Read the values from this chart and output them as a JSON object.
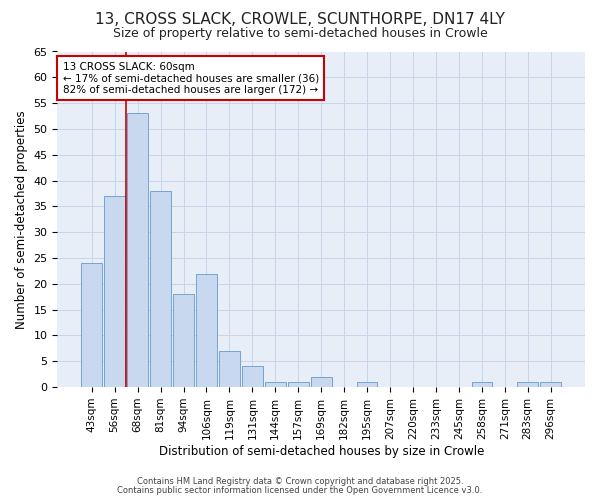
{
  "title1": "13, CROSS SLACK, CROWLE, SCUNTHORPE, DN17 4LY",
  "title2": "Size of property relative to semi-detached houses in Crowle",
  "xlabel": "Distribution of semi-detached houses by size in Crowle",
  "ylabel": "Number of semi-detached properties",
  "categories": [
    "43sqm",
    "56sqm",
    "68sqm",
    "81sqm",
    "94sqm",
    "106sqm",
    "119sqm",
    "131sqm",
    "144sqm",
    "157sqm",
    "169sqm",
    "182sqm",
    "195sqm",
    "207sqm",
    "220sqm",
    "233sqm",
    "245sqm",
    "258sqm",
    "271sqm",
    "283sqm",
    "296sqm"
  ],
  "values": [
    24,
    37,
    53,
    38,
    18,
    22,
    7,
    4,
    1,
    1,
    2,
    0,
    1,
    0,
    0,
    0,
    0,
    1,
    0,
    1,
    1
  ],
  "bar_color": "#c8d9ef",
  "bar_edge_color": "#6699cc",
  "grid_color": "#c8d4e8",
  "background_color": "#ffffff",
  "plot_bg_color": "#e8eef8",
  "vline_x": 1.5,
  "vline_color": "#cc0000",
  "annotation_text": "13 CROSS SLACK: 60sqm\n← 17% of semi-detached houses are smaller (36)\n82% of semi-detached houses are larger (172) →",
  "annotation_box_color": "#cc0000",
  "ylim": [
    0,
    65
  ],
  "footnote1": "Contains HM Land Registry data © Crown copyright and database right 2025.",
  "footnote2": "Contains public sector information licensed under the Open Government Licence v3.0."
}
